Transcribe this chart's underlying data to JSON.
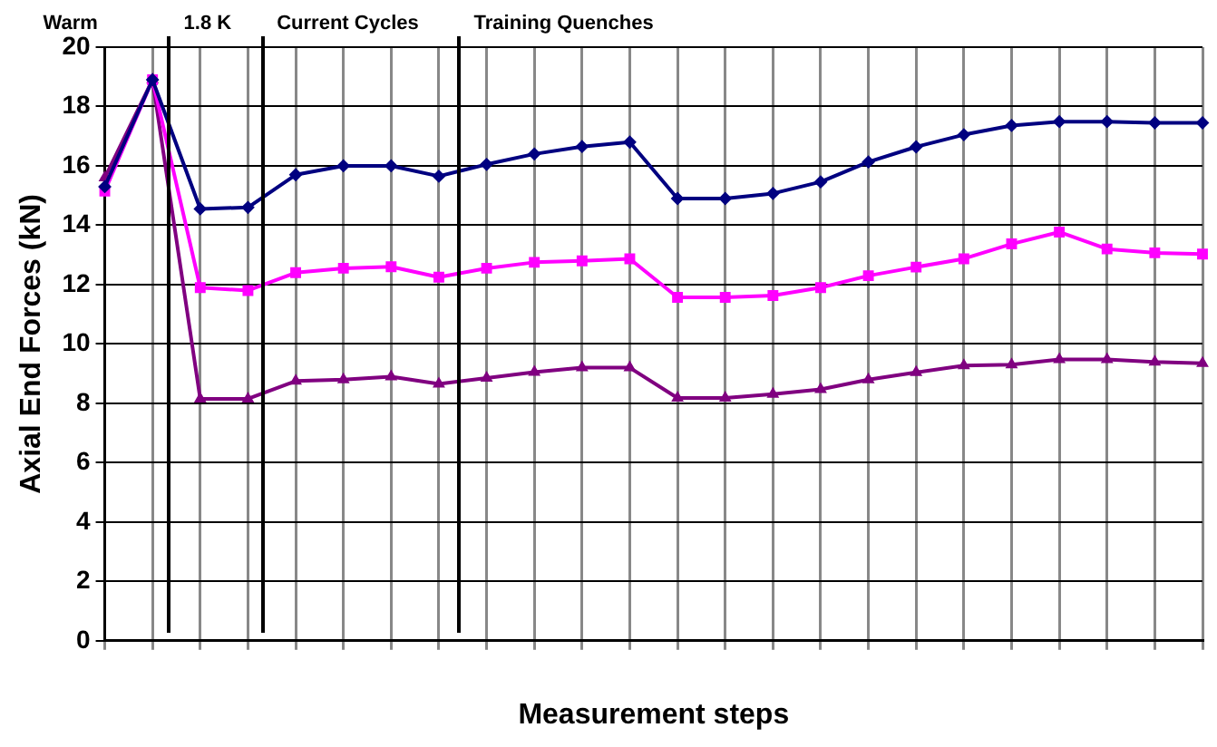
{
  "chart_data": {
    "type": "line",
    "xlabel": "Measurement steps",
    "ylabel": "Axial End Forces (kN)",
    "categories": [
      null,
      null,
      null,
      null,
      null,
      null,
      null,
      null,
      null,
      null,
      null,
      null,
      null,
      null,
      null,
      null,
      null,
      null,
      null,
      null,
      null,
      null,
      null,
      null
    ],
    "ylim": [
      0,
      20
    ],
    "yticks": [
      0,
      2,
      4,
      6,
      8,
      10,
      12,
      14,
      16,
      18,
      20
    ],
    "grid": true,
    "line_style": "solid",
    "series": [
      {
        "color": "#000080",
        "marker": "diamond",
        "values": [
          15.3,
          18.9,
          14.55,
          14.6,
          15.7,
          16.0,
          16.0,
          15.65,
          16.05,
          16.4,
          16.65,
          16.8,
          14.9,
          14.9,
          15.07,
          15.46,
          16.13,
          16.64,
          17.05,
          17.36,
          17.49,
          17.49,
          17.45,
          17.45
        ]
      },
      {
        "color": "#ff00ff",
        "marker": "square",
        "values": [
          15.15,
          18.9,
          11.9,
          11.8,
          12.4,
          12.55,
          12.6,
          12.25,
          12.55,
          12.75,
          12.8,
          12.87,
          11.57,
          11.57,
          11.63,
          11.9,
          12.3,
          12.59,
          12.87,
          13.37,
          13.77,
          13.2,
          13.07,
          13.03
        ]
      },
      {
        "color": "#800080",
        "marker": "triangle",
        "values": [
          15.6,
          18.9,
          8.15,
          8.15,
          8.75,
          8.8,
          8.9,
          8.65,
          8.85,
          9.05,
          9.2,
          9.2,
          8.18,
          8.18,
          8.31,
          8.47,
          8.8,
          9.04,
          9.27,
          9.3,
          9.48,
          9.48,
          9.39,
          9.35
        ]
      }
    ],
    "annotations": [
      "Warm",
      "1.8 K",
      "Current Cycles",
      "Training Quenches"
    ]
  }
}
